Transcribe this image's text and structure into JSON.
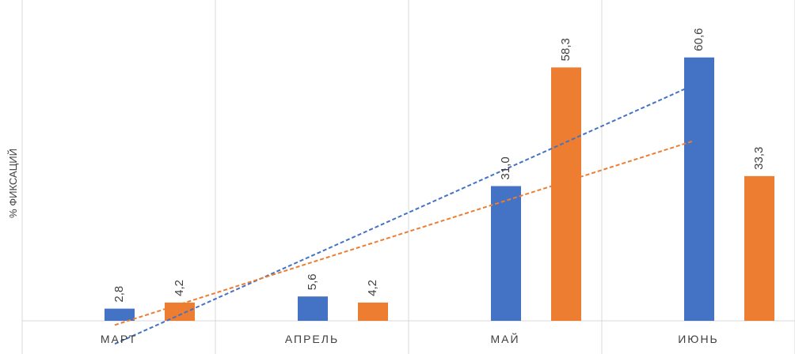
{
  "chart_data": {
    "type": "bar",
    "ylabel": "% ФИКСАЦИЙ",
    "categories": [
      "МАРТ",
      "АПРЕЛЬ",
      "МАЙ",
      "ИЮНЬ"
    ],
    "series": [
      {
        "values": [
          2.8,
          5.6,
          31.0,
          60.6
        ],
        "labels": [
          "2,8",
          "5,6",
          "31,0",
          "60,6"
        ],
        "color": "#4472C4"
      },
      {
        "values": [
          4.2,
          4.2,
          58.3,
          33.3
        ],
        "labels": [
          "4,2",
          "4,2",
          "58,3",
          "33,3"
        ],
        "color": "#ED7D31"
      }
    ],
    "trendlines": true,
    "trendline_style": "dashed",
    "grid": "vertical category separators",
    "ylim": [
      0,
      70
    ]
  }
}
